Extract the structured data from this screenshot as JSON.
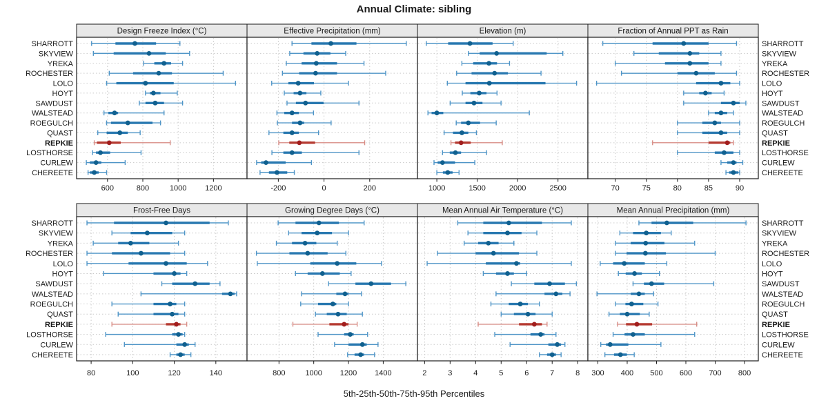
{
  "title": "Annual Climate: sibling",
  "xlabel": "5th-25th-50th-75th-95th Percentiles",
  "colors": {
    "normal": {
      "whisker": "#4f95c7",
      "bar": "#2878b0",
      "dot": "#10608f"
    },
    "highlight": {
      "whisker": "#d88d86",
      "bar": "#b53a31",
      "dot": "#a11d1d"
    },
    "strip_bg": "#e8e8e8",
    "grid": "#c9c9c9",
    "border": "#1a1a1a",
    "text": "#1a1a1a"
  },
  "chart_data": {
    "type": "interval-dot-trellis",
    "panel_layout": [
      2,
      4
    ],
    "grid": "dotted",
    "percentiles": [
      "5th",
      "25th",
      "50th",
      "75th",
      "95th"
    ],
    "sites": [
      "SHARROTT",
      "SKYVIEW",
      "YREKA",
      "ROCHESTER",
      "LOLO",
      "HOYT",
      "SAWDUST",
      "WALSTEAD",
      "ROEGULCH",
      "QUAST",
      "REPKIE",
      "LOSTHORSE",
      "CURLEW",
      "CHEREETE"
    ],
    "highlight_site": "REPKIE",
    "panels": [
      {
        "title": "Design Freeze Index (°C)",
        "row": 0,
        "col": 0,
        "xlim": [
          425,
          1390
        ],
        "ticks": [
          600,
          800,
          1000,
          1200
        ],
        "values": [
          [
            510,
            645,
            755,
            875,
            1010
          ],
          [
            520,
            635,
            835,
            930,
            1065
          ],
          [
            805,
            865,
            920,
            960,
            1025
          ],
          [
            610,
            745,
            890,
            965,
            1255
          ],
          [
            595,
            650,
            815,
            975,
            1325
          ],
          [
            815,
            840,
            860,
            900,
            995
          ],
          [
            780,
            815,
            870,
            920,
            1025
          ],
          [
            580,
            605,
            640,
            660,
            920
          ],
          [
            595,
            620,
            715,
            855,
            900
          ],
          [
            545,
            595,
            670,
            715,
            785
          ],
          [
            525,
            540,
            610,
            675,
            955
          ],
          [
            515,
            535,
            560,
            615,
            790
          ],
          [
            480,
            500,
            535,
            565,
            700
          ],
          [
            490,
            500,
            525,
            550,
            595
          ]
        ]
      },
      {
        "title": "Effective Precipitation (mm)",
        "row": 0,
        "col": 1,
        "xlim": [
          -337,
          409
        ],
        "ticks": [
          -200,
          0,
          200
        ],
        "values": [
          [
            -140,
            -55,
            30,
            142,
            360
          ],
          [
            -150,
            -90,
            -30,
            28,
            95
          ],
          [
            -165,
            -98,
            -34,
            57,
            175
          ],
          [
            -182,
            -109,
            -37,
            57,
            270
          ],
          [
            -229,
            -156,
            -113,
            -44,
            107
          ],
          [
            -174,
            -133,
            -105,
            -77,
            -14
          ],
          [
            -162,
            -123,
            -81,
            -2,
            153
          ],
          [
            -206,
            -174,
            -140,
            -110,
            -46
          ],
          [
            -204,
            -140,
            -105,
            -87,
            31
          ],
          [
            -241,
            -178,
            -140,
            -110,
            -24
          ],
          [
            -198,
            -152,
            -108,
            -39,
            178
          ],
          [
            -228,
            -178,
            -140,
            -97,
            153
          ],
          [
            -295,
            -275,
            -254,
            -168,
            -55
          ],
          [
            -280,
            -241,
            -206,
            -161,
            -130
          ]
        ]
      },
      {
        "title": "Elevation (m)",
        "row": 0,
        "col": 2,
        "xlim": [
          760,
          2870
        ],
        "ticks": [
          1000,
          1500,
          2000,
          2500
        ],
        "values": [
          [
            870,
            1140,
            1410,
            1690,
            1945
          ],
          [
            1390,
            1530,
            1740,
            2360,
            2560
          ],
          [
            1310,
            1450,
            1645,
            1745,
            1900
          ],
          [
            1245,
            1430,
            1715,
            1880,
            2290
          ],
          [
            1130,
            1355,
            1650,
            2345,
            2730
          ],
          [
            1315,
            1415,
            1525,
            1615,
            1745
          ],
          [
            1165,
            1355,
            1460,
            1565,
            1795
          ],
          [
            890,
            935,
            1000,
            1080,
            2145
          ],
          [
            1240,
            1300,
            1390,
            1535,
            1735
          ],
          [
            1090,
            1200,
            1310,
            1390,
            1490
          ],
          [
            1175,
            1225,
            1300,
            1420,
            1810
          ],
          [
            1070,
            1160,
            1230,
            1300,
            1615
          ],
          [
            965,
            1010,
            1070,
            1225,
            1470
          ],
          [
            1000,
            1075,
            1135,
            1195,
            1275
          ]
        ]
      },
      {
        "title": "Fraction of Annual PPT as Rain",
        "row": 0,
        "col": 3,
        "xlim": [
          65.6,
          93
        ],
        "ticks": [
          70,
          75,
          80,
          85,
          90
        ],
        "values": [
          [
            68,
            76,
            81,
            85,
            89.5
          ],
          [
            73,
            77,
            82,
            83.5,
            87
          ],
          [
            70,
            78,
            82,
            85,
            87
          ],
          [
            71,
            80,
            83,
            86,
            89.5
          ],
          [
            67,
            83,
            87,
            88.5,
            90
          ],
          [
            81,
            83.5,
            84.5,
            85.5,
            87.5
          ],
          [
            81,
            87,
            89,
            90,
            91
          ],
          [
            85,
            86,
            87,
            88,
            89
          ],
          [
            80,
            84,
            86,
            87,
            90
          ],
          [
            80,
            84,
            87,
            88,
            90
          ],
          [
            76,
            85,
            88,
            88.5,
            89
          ],
          [
            80,
            86,
            87.5,
            89,
            90
          ],
          [
            87,
            88,
            89,
            89.5,
            90.5
          ],
          [
            87.8,
            88.3,
            89,
            89.8,
            90
          ]
        ]
      },
      {
        "title": "Frost-Free Days",
        "row": 1,
        "col": 0,
        "xlim": [
          73,
          155
        ],
        "ticks": [
          80,
          100,
          120,
          140
        ],
        "values": [
          [
            78,
            91,
            116,
            137,
            146
          ],
          [
            90,
            99,
            107,
            119,
            125
          ],
          [
            81,
            93,
            99,
            108,
            122
          ],
          [
            78,
            90,
            104,
            118,
            125
          ],
          [
            78,
            98,
            116,
            126,
            136
          ],
          [
            86,
            110,
            120,
            123,
            126
          ],
          [
            114,
            119,
            130,
            137,
            142
          ],
          [
            104,
            143,
            147,
            149,
            150
          ],
          [
            90,
            110,
            118,
            121,
            125
          ],
          [
            93,
            110,
            119,
            122,
            125
          ],
          [
            90,
            116,
            121,
            123,
            126
          ],
          [
            87,
            119,
            122,
            124,
            125
          ],
          [
            96,
            121,
            125,
            127,
            130
          ],
          [
            118,
            121,
            123,
            125,
            128
          ]
        ]
      },
      {
        "title": "Growing Degree Days (°C)",
        "row": 1,
        "col": 1,
        "xlim": [
          616,
          1597
        ],
        "ticks": [
          800,
          1000,
          1200,
          1400
        ],
        "values": [
          [
            795,
            895,
            1030,
            1145,
            1290
          ],
          [
            855,
            930,
            1020,
            1105,
            1200
          ],
          [
            785,
            875,
            950,
            1015,
            1135
          ],
          [
            670,
            860,
            965,
            1080,
            1185
          ],
          [
            675,
            980,
            1135,
            1245,
            1390
          ],
          [
            895,
            965,
            1050,
            1150,
            1215
          ],
          [
            1085,
            1240,
            1330,
            1445,
            1530
          ],
          [
            930,
            1130,
            1180,
            1200,
            1275
          ],
          [
            925,
            1025,
            1110,
            1130,
            1200
          ],
          [
            1010,
            1075,
            1140,
            1190,
            1280
          ],
          [
            880,
            1090,
            1175,
            1200,
            1250
          ],
          [
            1025,
            1175,
            1210,
            1230,
            1310
          ],
          [
            1120,
            1200,
            1280,
            1305,
            1370
          ],
          [
            1195,
            1235,
            1270,
            1290,
            1350
          ]
        ]
      },
      {
        "title": "Mean Annual Air Temperature (°C)",
        "row": 1,
        "col": 2,
        "xlim": [
          1.72,
          8.4
        ],
        "ticks": [
          2,
          3,
          4,
          5,
          6,
          7,
          8
        ],
        "values": [
          [
            3.3,
            4.3,
            5.3,
            6.6,
            7.75
          ],
          [
            3.7,
            4.3,
            5.25,
            5.8,
            6.4
          ],
          [
            3.55,
            4.1,
            4.5,
            4.9,
            5.5
          ],
          [
            2.5,
            4.0,
            4.7,
            5.7,
            6.4
          ],
          [
            2.1,
            4.4,
            5.6,
            5.75,
            7.75
          ],
          [
            4.3,
            4.8,
            5.25,
            5.5,
            6.0
          ],
          [
            5.4,
            6.3,
            6.9,
            7.5,
            7.95
          ],
          [
            4.8,
            6.7,
            7.15,
            7.4,
            7.7
          ],
          [
            4.6,
            5.3,
            5.75,
            6.05,
            6.5
          ],
          [
            5.0,
            5.5,
            6.05,
            6.35,
            7.0
          ],
          [
            4.1,
            5.7,
            6.3,
            6.6,
            6.8
          ],
          [
            4.75,
            6.15,
            6.55,
            6.7,
            7.15
          ],
          [
            5.35,
            6.85,
            7.2,
            7.35,
            7.5
          ],
          [
            6.5,
            6.8,
            7.0,
            7.15,
            7.35
          ]
        ]
      },
      {
        "title": "Mean Annual Precipitation (mm)",
        "row": 1,
        "col": 3,
        "xlim": [
          266,
          847
        ],
        "ticks": [
          300,
          400,
          500,
          600,
          700,
          800
        ],
        "values": [
          [
            440,
            483,
            535,
            625,
            805
          ],
          [
            375,
            420,
            465,
            515,
            550
          ],
          [
            360,
            412,
            463,
            527,
            630
          ],
          [
            360,
            398,
            462,
            532,
            700
          ],
          [
            308,
            352,
            390,
            460,
            535
          ],
          [
            370,
            395,
            425,
            450,
            510
          ],
          [
            420,
            457,
            483,
            526,
            695
          ],
          [
            297,
            412,
            440,
            460,
            490
          ],
          [
            360,
            394,
            415,
            455,
            505
          ],
          [
            338,
            375,
            400,
            443,
            475
          ],
          [
            367,
            396,
            433,
            485,
            637
          ],
          [
            352,
            391,
            420,
            460,
            630
          ],
          [
            310,
            328,
            342,
            404,
            515
          ],
          [
            324,
            355,
            377,
            399,
            424
          ]
        ]
      }
    ]
  }
}
